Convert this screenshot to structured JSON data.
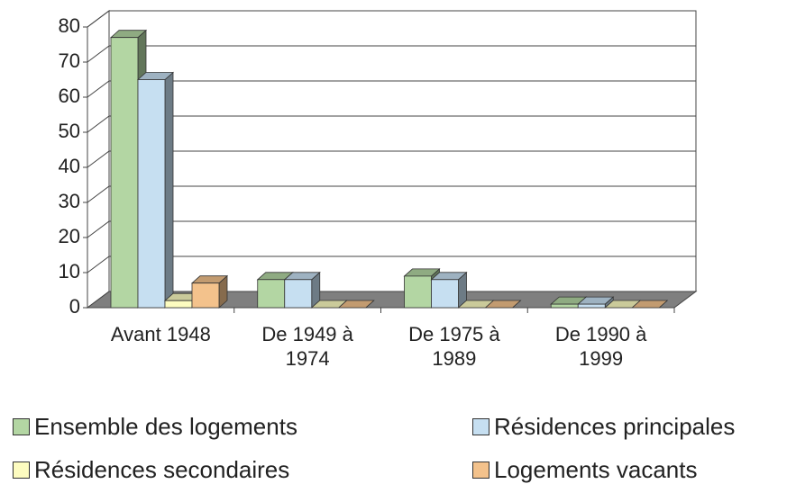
{
  "chart_data": {
    "type": "bar3d",
    "categories": [
      "Avant 1948",
      "De 1949 à 1974",
      "De 1975 à 1989",
      "De 1990 à 1999"
    ],
    "series": [
      {
        "name": "Ensemble des logements",
        "color": "#b3d6a3",
        "values": [
          77,
          8,
          9,
          1
        ]
      },
      {
        "name": "Résidences principales",
        "color": "#c6dff1",
        "values": [
          65,
          8,
          8,
          1
        ]
      },
      {
        "name": "Résidences secondaires",
        "color": "#fdfcc0",
        "values": [
          2,
          0,
          0,
          0
        ]
      },
      {
        "name": "Logements vacants",
        "color": "#f3c28c",
        "values": [
          7,
          0,
          0,
          0
        ]
      }
    ],
    "ylim": [
      0,
      80
    ],
    "yticks": [
      0,
      10,
      20,
      30,
      40,
      50,
      60,
      70,
      80
    ],
    "grid": true,
    "legend": "bottom"
  }
}
